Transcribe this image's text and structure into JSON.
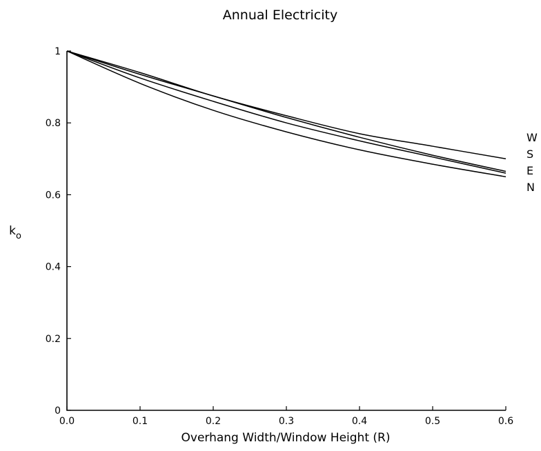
{
  "chart_data": {
    "type": "line",
    "title": "Annual Electricity",
    "xlabel": "Overhang Width/Window Height (R)",
    "ylabel": "k",
    "ylabel_subscript": "o",
    "xlim": [
      0,
      0.6
    ],
    "ylim": [
      0,
      1
    ],
    "x_ticks": [
      "0.0",
      "0.1",
      "0.2",
      "0.3",
      "0.4",
      "0.5",
      "0.6"
    ],
    "y_ticks": [
      "0",
      "0.2",
      "0.4",
      "0.6",
      "0.8",
      "1"
    ],
    "x_tick_values": [
      0,
      0.1,
      0.2,
      0.3,
      0.4,
      0.5,
      0.6
    ],
    "y_tick_values": [
      0,
      0.2,
      0.4,
      0.6,
      0.8,
      1
    ],
    "grid": false,
    "legend_labels": [
      "W",
      "S",
      "E",
      "N"
    ],
    "legend_placement": "right",
    "x": [
      0,
      0.1,
      0.2,
      0.3,
      0.4,
      0.5,
      0.6
    ],
    "series": [
      {
        "name": "W",
        "values": [
          1.0,
          0.94,
          0.875,
          0.82,
          0.77,
          0.735,
          0.7
        ]
      },
      {
        "name": "S",
        "values": [
          1.0,
          0.935,
          0.875,
          0.815,
          0.76,
          0.71,
          0.665
        ]
      },
      {
        "name": "E",
        "values": [
          1.0,
          0.925,
          0.86,
          0.8,
          0.75,
          0.705,
          0.66
        ]
      },
      {
        "name": "N",
        "values": [
          1.0,
          0.91,
          0.835,
          0.775,
          0.725,
          0.685,
          0.65
        ]
      }
    ]
  }
}
